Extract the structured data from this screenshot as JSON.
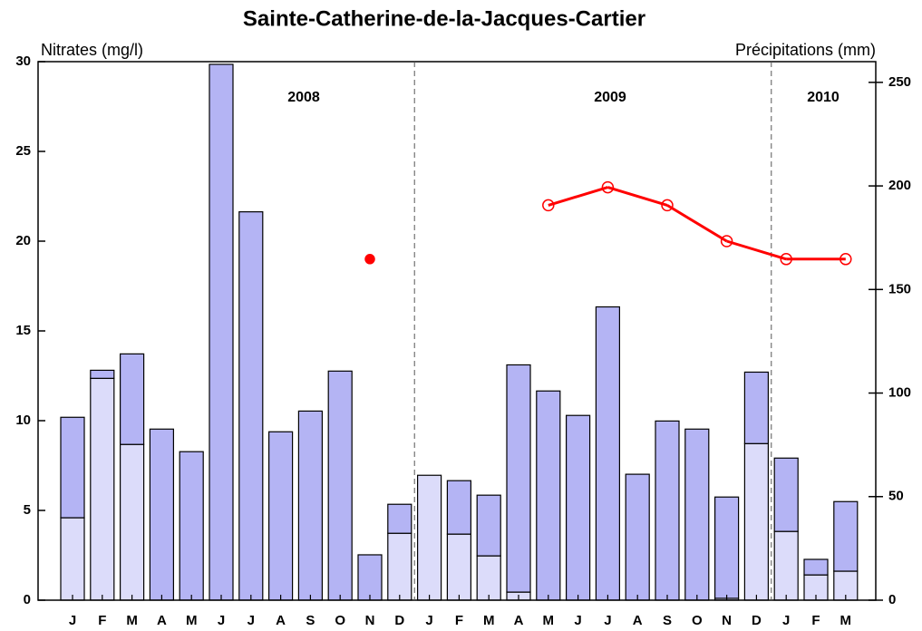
{
  "chart_data": {
    "type": "bar",
    "title": "Sainte-Catherine-de-la-Jacques-Cartier",
    "y_label": "Nitrates (mg/l)",
    "y2_label": "Précipitations (mm)",
    "annotations": [
      "2008",
      "2009",
      "2010"
    ],
    "categories": [
      "J",
      "F",
      "M",
      "A",
      "M",
      "J",
      "J",
      "A",
      "S",
      "O",
      "N",
      "D",
      "J",
      "F",
      "M",
      "A",
      "M",
      "J",
      "J",
      "A",
      "S",
      "O",
      "N",
      "D",
      "J",
      "F",
      "M"
    ],
    "ylim": [
      0,
      30
    ],
    "yticks": [
      0,
      5,
      10,
      15,
      20,
      25,
      30
    ],
    "y2lim": [
      0,
      260
    ],
    "y2ticks": [
      0,
      50,
      100,
      150,
      200,
      250
    ],
    "series": [
      {
        "type": "bar",
        "axis": "y2",
        "color": "#dcdcfa",
        "stack": true,
        "values": [
          39.8,
          107.1,
          75.2,
          0,
          0,
          0,
          0,
          0,
          0,
          0,
          0,
          32.3,
          60.3,
          31.9,
          21.4,
          3.9,
          0,
          0,
          0,
          0,
          0,
          0,
          0.9,
          75.6,
          33.2,
          12.2,
          14.0
        ]
      },
      {
        "type": "bar",
        "axis": "y2",
        "color": "#b4b4f4",
        "stack": true,
        "values": [
          48.5,
          3.9,
          43.7,
          82.6,
          71.7,
          258.7,
          187.5,
          81.3,
          91.3,
          110.6,
          21.9,
          14.0,
          0,
          25.8,
          29.3,
          109.7,
          101.0,
          89.2,
          141.6,
          60.8,
          86.5,
          82.6,
          48.9,
          34.5,
          35.4,
          7.5,
          33.6
        ]
      },
      {
        "type": "point",
        "axis": "y",
        "color": "#ff0000",
        "marker": "filled",
        "values": [
          null,
          null,
          null,
          null,
          null,
          null,
          null,
          null,
          null,
          null,
          19,
          null,
          null,
          null,
          null,
          null,
          null,
          null,
          null,
          null,
          null,
          null,
          null,
          null,
          null,
          null,
          null
        ]
      },
      {
        "type": "line",
        "axis": "y",
        "color": "#ff0000",
        "marker": "open",
        "values": [
          null,
          null,
          null,
          null,
          null,
          null,
          null,
          null,
          null,
          null,
          null,
          null,
          null,
          null,
          null,
          null,
          22,
          null,
          23,
          null,
          22,
          null,
          20,
          null,
          19,
          null,
          19
        ]
      }
    ],
    "year_separators": true
  }
}
